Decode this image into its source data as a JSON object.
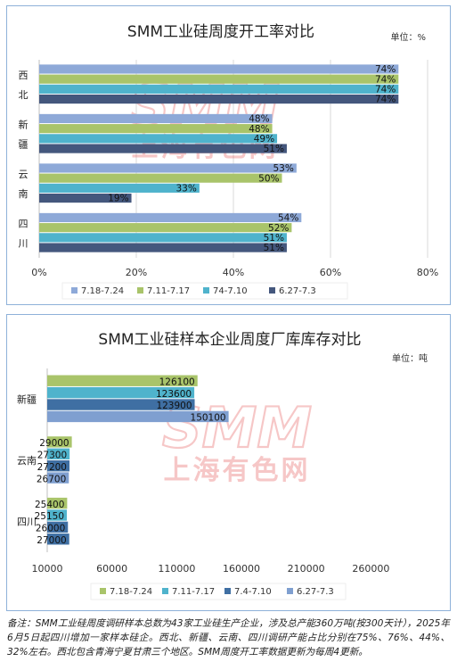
{
  "colors": {
    "s1": "#8ea9d8",
    "s2": "#a9c46a",
    "s3": "#4fb3cc",
    "s4": "#44577d",
    "s4b": "#3f6fa3",
    "s4c": "#7f9fd0",
    "grid": "#d9d9d9",
    "watermark": "#e23b3b"
  },
  "watermark": {
    "brand": "SMM",
    "cn": "上海有色网"
  },
  "chart_data": [
    {
      "type": "bar",
      "orientation": "horizontal",
      "title": "SMM工业硅周度开工率对比",
      "unit": "单位：%",
      "categories": [
        [
          "西",
          "北"
        ],
        [
          "新",
          "疆"
        ],
        [
          "云",
          "南"
        ],
        [
          "四",
          "川"
        ]
      ],
      "xlim": [
        0,
        80
      ],
      "xticks": [
        0,
        20,
        40,
        60,
        80
      ],
      "tick_suffix": "%",
      "grid": true,
      "legend": "bottom",
      "series": [
        {
          "name": "7.18-7.24",
          "values": [
            74,
            48,
            53,
            54
          ]
        },
        {
          "name": "7.11-7.17",
          "values": [
            74,
            48,
            50,
            52
          ]
        },
        {
          "name": "74-7.10",
          "values": [
            74,
            49,
            33,
            51
          ]
        },
        {
          "name": "6.27-7.3",
          "values": [
            74,
            51,
            19,
            51
          ]
        }
      ]
    },
    {
      "type": "bar",
      "orientation": "horizontal",
      "title": "SMM工业硅样本企业周度厂库库存对比",
      "unit": "单位：吨",
      "categories": [
        [
          "新疆"
        ],
        [
          "云南"
        ],
        [
          "四川"
        ]
      ],
      "xlim": [
        10000,
        310000
      ],
      "xticks": [
        10000,
        60000,
        110000,
        160000,
        210000,
        260000
      ],
      "tick_suffix": "",
      "grid": false,
      "legend": "bottom",
      "series": [
        {
          "name": "7.18-7.24",
          "values": [
            126100,
            29000,
            25400
          ]
        },
        {
          "name": "7.11-7.17",
          "values": [
            123600,
            27300,
            25150
          ]
        },
        {
          "name": "7.4-7.10",
          "values": [
            123900,
            27200,
            26000
          ]
        },
        {
          "name": "6.27-7.3",
          "values": [
            150100,
            26700,
            27000
          ]
        }
      ]
    }
  ],
  "note": "备注：SMM工业硅周度调研样本总数为43家工业硅生产企业，涉及总产能360万吨(按300天计），2025年6月5日起四川增加一家样本硅企。西北、新疆、云南、四川调研产能占比分别在75%、76%、44%、32%左右。西北包含青海宁夏甘肃三个地区。SMM周度开工率数据更新为每周4更新。"
}
